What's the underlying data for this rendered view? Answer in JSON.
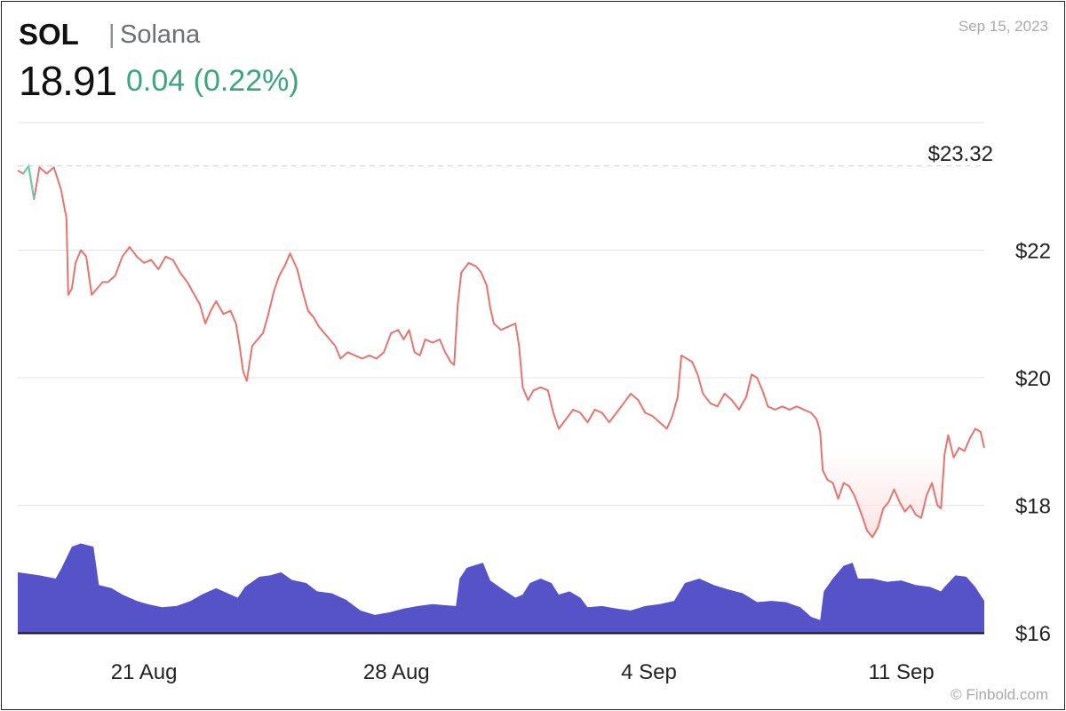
{
  "header": {
    "ticker": "SOL",
    "separator": "|",
    "name": "Solana",
    "price": "18.91",
    "change": "0.04 (0.22%)",
    "date": "Sep 15, 2023"
  },
  "footer": {
    "credit": "© Finbold.com"
  },
  "colors": {
    "price_line": "#e87470",
    "start_highlight": "#5ed3a8",
    "volume": "#5652c7",
    "grid": "#e3e3e3",
    "low_shade": "#fde4e4"
  },
  "chart_data": {
    "type": "line",
    "title": "",
    "xlabel": "",
    "ylabel": "",
    "ylim": [
      16,
      24.2
    ],
    "y_ticks": [
      {
        "value": 16,
        "label": "$16"
      },
      {
        "value": 18,
        "label": "$18"
      },
      {
        "value": 20,
        "label": "$20"
      },
      {
        "value": 22,
        "label": "$22"
      }
    ],
    "x_ticks": [
      {
        "value": 3.5,
        "label": "21 Aug"
      },
      {
        "value": 10.5,
        "label": "28 Aug"
      },
      {
        "value": 17.5,
        "label": "4 Sep"
      },
      {
        "value": 24.5,
        "label": "11 Sep"
      }
    ],
    "last_price_label": "$23.32",
    "last_price_value": 23.32,
    "grid": true,
    "series": [
      {
        "values": [
          [
            0.0,
            23.25
          ],
          [
            0.15,
            23.2
          ],
          [
            0.3,
            23.32
          ],
          [
            0.45,
            22.8
          ],
          [
            0.6,
            23.3
          ],
          [
            0.8,
            23.2
          ],
          [
            1.0,
            23.3
          ],
          [
            1.2,
            22.95
          ],
          [
            1.35,
            22.5
          ],
          [
            1.4,
            21.3
          ],
          [
            1.5,
            21.4
          ],
          [
            1.6,
            21.8
          ],
          [
            1.75,
            22.0
          ],
          [
            1.9,
            21.9
          ],
          [
            2.05,
            21.3
          ],
          [
            2.2,
            21.4
          ],
          [
            2.35,
            21.5
          ],
          [
            2.5,
            21.5
          ],
          [
            2.7,
            21.6
          ],
          [
            2.9,
            21.9
          ],
          [
            3.1,
            22.05
          ],
          [
            3.3,
            21.9
          ],
          [
            3.5,
            21.8
          ],
          [
            3.7,
            21.85
          ],
          [
            3.9,
            21.7
          ],
          [
            4.1,
            21.9
          ],
          [
            4.3,
            21.85
          ],
          [
            4.5,
            21.65
          ],
          [
            4.7,
            21.5
          ],
          [
            4.9,
            21.3
          ],
          [
            5.05,
            21.15
          ],
          [
            5.2,
            20.85
          ],
          [
            5.35,
            21.05
          ],
          [
            5.5,
            21.2
          ],
          [
            5.7,
            21.0
          ],
          [
            5.9,
            21.05
          ],
          [
            6.05,
            20.85
          ],
          [
            6.15,
            20.5
          ],
          [
            6.25,
            20.1
          ],
          [
            6.35,
            19.95
          ],
          [
            6.5,
            20.5
          ],
          [
            6.65,
            20.6
          ],
          [
            6.8,
            20.7
          ],
          [
            6.95,
            21.0
          ],
          [
            7.1,
            21.35
          ],
          [
            7.25,
            21.6
          ],
          [
            7.4,
            21.75
          ],
          [
            7.55,
            21.95
          ],
          [
            7.75,
            21.7
          ],
          [
            7.9,
            21.35
          ],
          [
            8.05,
            21.05
          ],
          [
            8.2,
            20.95
          ],
          [
            8.35,
            20.8
          ],
          [
            8.5,
            20.7
          ],
          [
            8.65,
            20.6
          ],
          [
            8.8,
            20.5
          ],
          [
            8.95,
            20.3
          ],
          [
            9.15,
            20.4
          ],
          [
            9.35,
            20.35
          ],
          [
            9.55,
            20.3
          ],
          [
            9.75,
            20.35
          ],
          [
            9.95,
            20.3
          ],
          [
            10.15,
            20.4
          ],
          [
            10.35,
            20.7
          ],
          [
            10.55,
            20.75
          ],
          [
            10.7,
            20.6
          ],
          [
            10.85,
            20.75
          ],
          [
            11.0,
            20.4
          ],
          [
            11.15,
            20.35
          ],
          [
            11.3,
            20.6
          ],
          [
            11.5,
            20.55
          ],
          [
            11.7,
            20.6
          ],
          [
            11.85,
            20.4
          ],
          [
            12.0,
            20.25
          ],
          [
            12.1,
            20.2
          ],
          [
            12.2,
            21.15
          ],
          [
            12.3,
            21.65
          ],
          [
            12.5,
            21.8
          ],
          [
            12.7,
            21.75
          ],
          [
            12.85,
            21.65
          ],
          [
            13.0,
            21.45
          ],
          [
            13.1,
            21.1
          ],
          [
            13.2,
            20.85
          ],
          [
            13.4,
            20.75
          ],
          [
            13.6,
            20.8
          ],
          [
            13.8,
            20.85
          ],
          [
            13.9,
            20.5
          ],
          [
            14.0,
            19.85
          ],
          [
            14.15,
            19.65
          ],
          [
            14.3,
            19.8
          ],
          [
            14.5,
            19.85
          ],
          [
            14.7,
            19.8
          ],
          [
            14.85,
            19.45
          ],
          [
            15.0,
            19.2
          ],
          [
            15.2,
            19.35
          ],
          [
            15.4,
            19.5
          ],
          [
            15.6,
            19.45
          ],
          [
            15.8,
            19.3
          ],
          [
            16.0,
            19.5
          ],
          [
            16.2,
            19.45
          ],
          [
            16.4,
            19.3
          ],
          [
            16.6,
            19.45
          ],
          [
            16.8,
            19.6
          ],
          [
            17.0,
            19.75
          ],
          [
            17.2,
            19.65
          ],
          [
            17.4,
            19.45
          ],
          [
            17.6,
            19.4
          ],
          [
            17.8,
            19.3
          ],
          [
            18.0,
            19.2
          ],
          [
            18.15,
            19.4
          ],
          [
            18.3,
            19.7
          ],
          [
            18.4,
            20.35
          ],
          [
            18.55,
            20.3
          ],
          [
            18.7,
            20.25
          ],
          [
            18.85,
            20.05
          ],
          [
            19.0,
            19.75
          ],
          [
            19.2,
            19.6
          ],
          [
            19.4,
            19.55
          ],
          [
            19.6,
            19.75
          ],
          [
            19.8,
            19.65
          ],
          [
            20.0,
            19.5
          ],
          [
            20.2,
            19.7
          ],
          [
            20.35,
            20.05
          ],
          [
            20.5,
            20.0
          ],
          [
            20.65,
            19.8
          ],
          [
            20.8,
            19.55
          ],
          [
            21.0,
            19.5
          ],
          [
            21.2,
            19.55
          ],
          [
            21.4,
            19.5
          ],
          [
            21.6,
            19.55
          ],
          [
            21.8,
            19.5
          ],
          [
            22.0,
            19.45
          ],
          [
            22.15,
            19.35
          ],
          [
            22.25,
            19.15
          ],
          [
            22.32,
            18.55
          ],
          [
            22.45,
            18.4
          ],
          [
            22.6,
            18.35
          ],
          [
            22.75,
            18.1
          ],
          [
            22.9,
            18.35
          ],
          [
            23.05,
            18.3
          ],
          [
            23.2,
            18.15
          ],
          [
            23.4,
            17.85
          ],
          [
            23.55,
            17.6
          ],
          [
            23.7,
            17.5
          ],
          [
            23.85,
            17.65
          ],
          [
            24.0,
            17.95
          ],
          [
            24.15,
            18.05
          ],
          [
            24.3,
            18.25
          ],
          [
            24.45,
            18.05
          ],
          [
            24.6,
            17.9
          ],
          [
            24.75,
            18.0
          ],
          [
            24.9,
            17.85
          ],
          [
            25.05,
            17.8
          ],
          [
            25.2,
            18.15
          ],
          [
            25.35,
            18.35
          ],
          [
            25.5,
            18.0
          ],
          [
            25.6,
            17.95
          ],
          [
            25.7,
            18.8
          ],
          [
            25.8,
            19.1
          ],
          [
            25.95,
            18.75
          ],
          [
            26.1,
            18.9
          ],
          [
            26.25,
            18.85
          ],
          [
            26.4,
            19.05
          ],
          [
            26.55,
            19.2
          ],
          [
            26.7,
            19.15
          ],
          [
            26.8,
            18.9
          ]
        ]
      },
      {
        "values": [
          [
            0.0,
            16.95
          ],
          [
            0.6,
            16.9
          ],
          [
            1.05,
            16.85
          ],
          [
            1.2,
            17.0
          ],
          [
            1.5,
            17.35
          ],
          [
            1.75,
            17.4
          ],
          [
            2.1,
            17.35
          ],
          [
            2.25,
            16.75
          ],
          [
            2.6,
            16.7
          ],
          [
            2.9,
            16.6
          ],
          [
            3.3,
            16.5
          ],
          [
            3.6,
            16.45
          ],
          [
            4.0,
            16.4
          ],
          [
            4.4,
            16.42
          ],
          [
            4.8,
            16.5
          ],
          [
            5.1,
            16.6
          ],
          [
            5.5,
            16.7
          ],
          [
            5.9,
            16.6
          ],
          [
            6.1,
            16.55
          ],
          [
            6.3,
            16.72
          ],
          [
            6.7,
            16.88
          ],
          [
            7.0,
            16.9
          ],
          [
            7.3,
            16.95
          ],
          [
            7.6,
            16.83
          ],
          [
            8.0,
            16.78
          ],
          [
            8.3,
            16.65
          ],
          [
            8.7,
            16.62
          ],
          [
            9.1,
            16.52
          ],
          [
            9.5,
            16.35
          ],
          [
            9.9,
            16.28
          ],
          [
            10.3,
            16.32
          ],
          [
            10.7,
            16.38
          ],
          [
            11.1,
            16.42
          ],
          [
            11.5,
            16.45
          ],
          [
            11.9,
            16.43
          ],
          [
            12.15,
            16.42
          ],
          [
            12.25,
            16.85
          ],
          [
            12.45,
            17.02
          ],
          [
            12.9,
            17.1
          ],
          [
            13.1,
            16.82
          ],
          [
            13.4,
            16.7
          ],
          [
            13.8,
            16.55
          ],
          [
            14.0,
            16.6
          ],
          [
            14.2,
            16.78
          ],
          [
            14.5,
            16.85
          ],
          [
            14.8,
            16.78
          ],
          [
            15.0,
            16.6
          ],
          [
            15.3,
            16.65
          ],
          [
            15.6,
            16.55
          ],
          [
            15.8,
            16.4
          ],
          [
            16.2,
            16.42
          ],
          [
            16.6,
            16.38
          ],
          [
            17.0,
            16.35
          ],
          [
            17.4,
            16.42
          ],
          [
            17.8,
            16.45
          ],
          [
            18.2,
            16.5
          ],
          [
            18.5,
            16.78
          ],
          [
            18.9,
            16.85
          ],
          [
            19.3,
            16.75
          ],
          [
            19.7,
            16.68
          ],
          [
            20.1,
            16.62
          ],
          [
            20.5,
            16.48
          ],
          [
            20.9,
            16.5
          ],
          [
            21.3,
            16.48
          ],
          [
            21.7,
            16.4
          ],
          [
            22.0,
            16.25
          ],
          [
            22.25,
            16.2
          ],
          [
            22.35,
            16.65
          ],
          [
            22.6,
            16.85
          ],
          [
            22.9,
            17.05
          ],
          [
            23.15,
            17.1
          ],
          [
            23.3,
            16.85
          ],
          [
            23.7,
            16.85
          ],
          [
            24.1,
            16.8
          ],
          [
            24.5,
            16.82
          ],
          [
            24.9,
            16.75
          ],
          [
            25.3,
            16.72
          ],
          [
            25.6,
            16.65
          ],
          [
            25.7,
            16.72
          ],
          [
            26.0,
            16.9
          ],
          [
            26.3,
            16.88
          ],
          [
            26.55,
            16.72
          ],
          [
            26.8,
            16.5
          ]
        ]
      }
    ]
  }
}
